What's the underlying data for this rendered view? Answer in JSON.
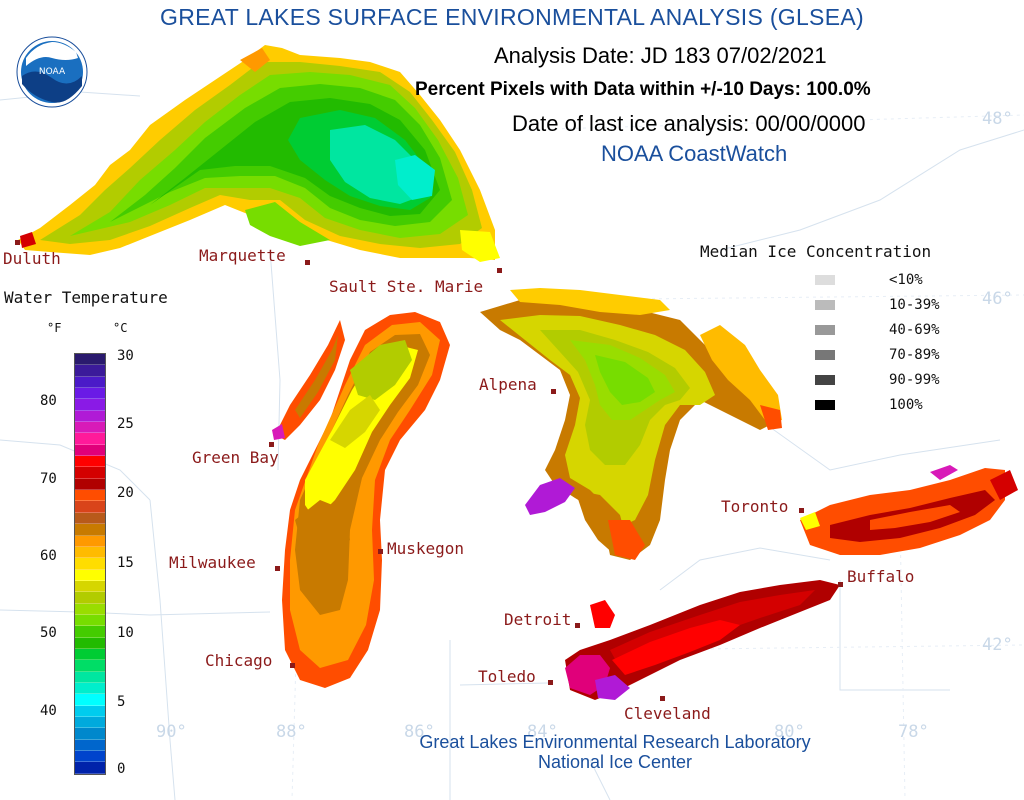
{
  "title": "GREAT LAKES SURFACE ENVIRONMENTAL ANALYSIS (GLSEA)",
  "header": {
    "analysis_date": "Analysis Date:  JD 183 07/02/2021",
    "percent_pixels": "Percent Pixels with Data within +/-10 Days: 100.0%",
    "last_ice": "Date of last ice analysis: 00/00/0000",
    "source": "NOAA CoastWatch"
  },
  "logo_text": "NOAA",
  "cities": {
    "duluth": "Duluth",
    "marquette": "Marquette",
    "sault": "Sault Ste. Marie",
    "alpena": "Alpena",
    "green_bay": "Green Bay",
    "milwaukee": "Milwaukee",
    "muskegon": "Muskegon",
    "chicago": "Chicago",
    "detroit": "Detroit",
    "toledo": "Toledo",
    "cleveland": "Cleveland",
    "toronto": "Toronto",
    "buffalo": "Buffalo"
  },
  "graticule": {
    "lat48": "48°",
    "lat46": "46°",
    "lat42": "42°",
    "lon90": "90°",
    "lon88": "88°",
    "lon86": "86°",
    "lon84": "84°",
    "lon80": "80°",
    "lon78": "78°"
  },
  "temp_legend": {
    "title": "Water Temperature",
    "unit_f": "°F",
    "unit_c": "°C",
    "f_ticks": [
      "80",
      "70",
      "60",
      "50",
      "40"
    ],
    "c_ticks": [
      "30",
      "25",
      "20",
      "15",
      "10",
      "5",
      "0"
    ],
    "colors": [
      "#2a1a6e",
      "#3b1a9a",
      "#4b1ac8",
      "#6a1ae6",
      "#8a1ae6",
      "#b01ad6",
      "#d81ab8",
      "#ff1a9a",
      "#e0007a",
      "#ff0000",
      "#d40000",
      "#b00000",
      "#ff4d00",
      "#d9441a",
      "#b85a1a",
      "#c87a00",
      "#ff9900",
      "#ffbb00",
      "#ffdd00",
      "#ffff00",
      "#d6d600",
      "#b2cc00",
      "#99dd00",
      "#77dd00",
      "#44cc00",
      "#22bb00",
      "#00cc33",
      "#00dd66",
      "#00e6a0",
      "#00eecc",
      "#00ffff",
      "#00ccee",
      "#00aadd",
      "#0088cc",
      "#0066cc",
      "#0044cc",
      "#0022aa"
    ]
  },
  "ice_legend": {
    "title": "Median Ice Concentration",
    "items": [
      {
        "label": "<10%",
        "color": "#dddddd"
      },
      {
        "label": "10-39%",
        "color": "#bbbbbb"
      },
      {
        "label": "40-69%",
        "color": "#999999"
      },
      {
        "label": "70-89%",
        "color": "#777777"
      },
      {
        "label": "90-99%",
        "color": "#444444"
      },
      {
        "label": "100%",
        "color": "#000000"
      }
    ]
  },
  "footer": {
    "line1": "Great Lakes Environmental Research Laboratory",
    "line2": "National Ice Center"
  }
}
